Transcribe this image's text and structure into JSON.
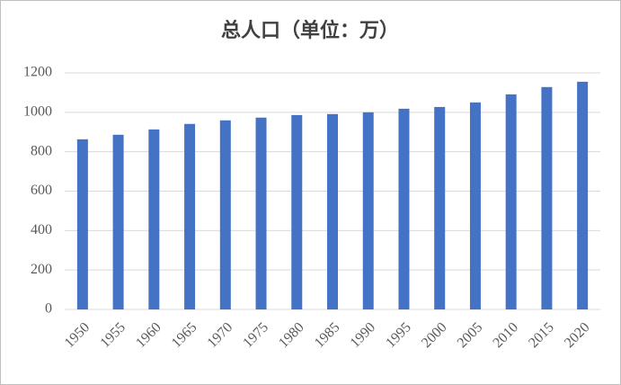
{
  "chart_data": {
    "type": "bar",
    "title": "总人口（单位：万）",
    "categories": [
      "1950",
      "1955",
      "1960",
      "1965",
      "1970",
      "1975",
      "1980",
      "1985",
      "1990",
      "1995",
      "2000",
      "2005",
      "2010",
      "2015",
      "2020"
    ],
    "values": [
      863,
      886,
      913,
      941,
      959,
      973,
      986,
      991,
      1000,
      1018,
      1027,
      1050,
      1091,
      1128,
      1155
    ],
    "color": "#4472c4",
    "ylim": [
      0,
      1200
    ],
    "yticks": [
      0,
      200,
      400,
      600,
      800,
      1000,
      1200
    ],
    "grid": true
  }
}
